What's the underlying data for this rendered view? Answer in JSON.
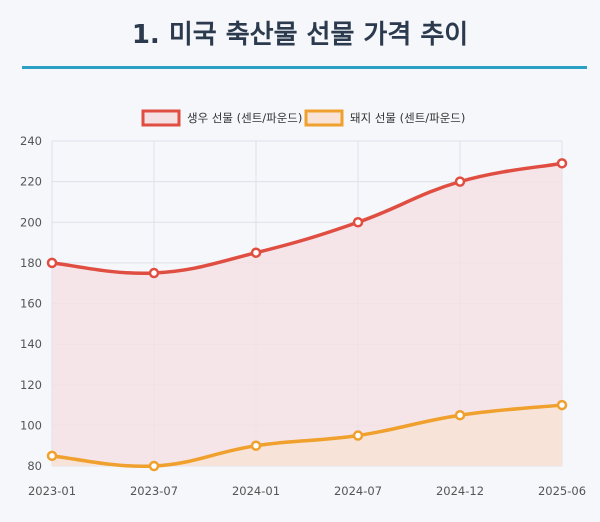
{
  "title": "1. 미국 축산물 선물 가격 추이",
  "chart_data": {
    "type": "line",
    "x": [
      "2023-01",
      "2023-07",
      "2024-01",
      "2024-07",
      "2024-12",
      "2025-06"
    ],
    "series": [
      {
        "name": "생우 선물 (센트/파운드)",
        "values": [
          180,
          175,
          185,
          200,
          220,
          229
        ],
        "color": "#e04e42",
        "fill": "#f5e0e4"
      },
      {
        "name": "돼지 선물 (센트/파운드)",
        "values": [
          85,
          80,
          90,
          95,
          105,
          110
        ],
        "color": "#f0a02c",
        "fill": "#f8e3d6"
      }
    ],
    "ylim": [
      80,
      240
    ],
    "yticks": [
      80,
      100,
      120,
      140,
      160,
      180,
      200,
      220,
      240
    ],
    "grid": true,
    "legend_position": "top",
    "area_fill": true
  }
}
